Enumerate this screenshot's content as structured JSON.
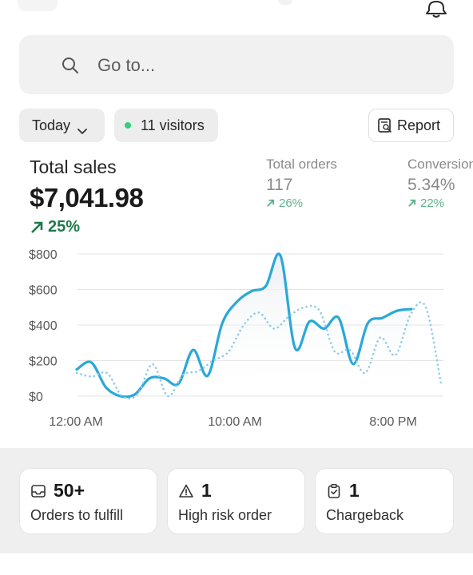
{
  "search": {
    "placeholder": "Go to..."
  },
  "filters": {
    "date_label": "Today",
    "visitors_label": "11 visitors",
    "report_label": "Report"
  },
  "metrics": {
    "total_sales": {
      "label": "Total sales",
      "value": "$7,041.98",
      "change": "25%"
    },
    "total_orders": {
      "label": "Total orders",
      "value": "117",
      "change": "26%"
    },
    "conversion": {
      "label": "Conversion rate",
      "value": "5.34%",
      "change": "22%"
    }
  },
  "chart_data": {
    "type": "line",
    "y_ticks": [
      "$800",
      "$600",
      "$400",
      "$200",
      "$0"
    ],
    "x_ticks": [
      "12:00 AM",
      "10:00 AM",
      "8:00 PM"
    ],
    "ylim": [
      0,
      800
    ],
    "grid": true,
    "series": [
      {
        "style": "solid",
        "color": "#2aa8d8",
        "values": [
          150,
          190,
          50,
          0,
          10,
          100,
          100,
          70,
          260,
          115,
          410,
          530,
          590,
          620,
          790,
          270,
          420,
          380,
          440,
          180,
          410,
          440,
          480,
          490
        ]
      },
      {
        "style": "dotted",
        "color": "#8ccbe6",
        "values": [
          130,
          110,
          130,
          0,
          10,
          180,
          0,
          120,
          140,
          200,
          250,
          400,
          470,
          380,
          450,
          500,
          480,
          250,
          260,
          130,
          330,
          230,
          460,
          500,
          70
        ]
      }
    ]
  },
  "cards": [
    {
      "value": "50+",
      "label": "Orders to fulfill"
    },
    {
      "value": "1",
      "label": "High risk order"
    },
    {
      "value": "1",
      "label": "Chargeback"
    }
  ]
}
